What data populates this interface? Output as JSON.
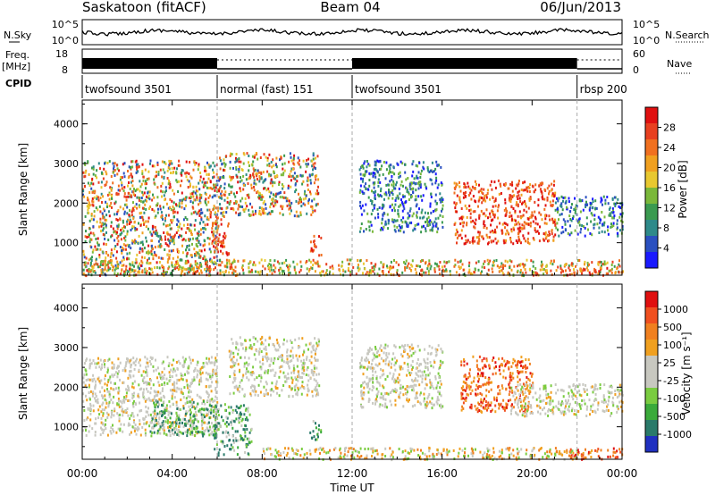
{
  "header": {
    "site": "Saskatoon (fitACF)",
    "beam": "Beam 04",
    "date": "06/Jun/2013"
  },
  "status_panels": {
    "nsky_label": "N.Sky",
    "nsky_ticks": [
      "10^5",
      "10^0"
    ],
    "nsearch_label": "N.Search",
    "nsearch_ticks": [
      "10^5",
      "10^0"
    ],
    "freq_label": "Freq.",
    "freq_unit": "[MHz]",
    "freq_ticks": [
      "18",
      "8"
    ],
    "nave_label": "Nave",
    "nave_ticks": [
      "60",
      "0"
    ],
    "cpid_label": "CPID"
  },
  "cpid_segments": [
    {
      "start": "00:00",
      "end": "06:00",
      "label": "twofsound 3501",
      "freq_style": "solid"
    },
    {
      "start": "06:00",
      "end": "12:00",
      "label": "normal (fast) 151",
      "freq_style": "dotted"
    },
    {
      "start": "12:00",
      "end": "22:00",
      "label": "twofsound 3501",
      "freq_style": "solid"
    },
    {
      "start": "22:00",
      "end": "24:00",
      "label": "rbsp 200",
      "freq_style": "dotted"
    }
  ],
  "x_axis": {
    "label": "Time UT",
    "ticks": [
      "00:00",
      "04:00",
      "08:00",
      "12:00",
      "16:00",
      "20:00",
      "00:00"
    ],
    "range_hours": [
      0,
      24
    ]
  },
  "chart_data": [
    {
      "type": "heatmap",
      "parameter": "power",
      "ylabel": "Slant Range [km]",
      "yticks": [
        "1000",
        "2000",
        "3000",
        "4000"
      ],
      "ylim": [
        180,
        4600
      ],
      "xlim_hours": [
        0,
        24
      ],
      "colorbar": {
        "label": "Power [dB]",
        "ticks": [
          "4",
          "8",
          "12",
          "16",
          "20",
          "24",
          "28"
        ],
        "range": [
          0,
          32
        ],
        "colors": [
          "#1a1aff",
          "#2a50c0",
          "#2e8a8a",
          "#3a9a50",
          "#7ab83a",
          "#e8c830",
          "#f0a020",
          "#f07020",
          "#e84020",
          "#e01010"
        ]
      },
      "scatter_regions": [
        {
          "hours": [
            0,
            6
          ],
          "range_km": [
            200,
            3100
          ],
          "level": "mixed"
        },
        {
          "hours": [
            6,
            10.5
          ],
          "range_km": [
            1700,
            3300
          ],
          "level": "mixed"
        },
        {
          "hours": [
            5.7,
            6.5
          ],
          "range_km": [
            700,
            1700
          ],
          "level": "high"
        },
        {
          "hours": [
            10.1,
            10.6
          ],
          "range_km": [
            700,
            1200
          ],
          "level": "high"
        },
        {
          "hours": [
            12.3,
            16
          ],
          "range_km": [
            1300,
            3100
          ],
          "level": "low"
        },
        {
          "hours": [
            16.5,
            21
          ],
          "range_km": [
            1000,
            2600
          ],
          "level": "high"
        },
        {
          "hours": [
            0,
            24
          ],
          "range_km": [
            200,
            600
          ],
          "level": "ground"
        },
        {
          "hours": [
            21.5,
            24
          ],
          "range_km": [
            200,
            400
          ],
          "level": "high"
        },
        {
          "hours": [
            21,
            24
          ],
          "range_km": [
            1200,
            2200
          ],
          "level": "low"
        }
      ]
    },
    {
      "type": "heatmap",
      "parameter": "velocity",
      "ylabel": "Slant Range [km]",
      "yticks": [
        "1000",
        "2000",
        "3000",
        "4000"
      ],
      "ylim": [
        180,
        4600
      ],
      "xlim_hours": [
        0,
        24
      ],
      "colorbar": {
        "label": "Velocity [m s⁻¹]",
        "ticks": [
          "1000",
          "500",
          "100",
          "25",
          "-25",
          "-100",
          "-500",
          "-1000"
        ],
        "colors": [
          "#2030c0",
          "#2a7a6a",
          "#3aaa3a",
          "#7acc40",
          "#c8c8c0",
          "#c8c8c0",
          "#f0a020",
          "#f08020",
          "#f05020",
          "#e01010"
        ]
      },
      "scatter_regions": [
        {
          "hours": [
            0,
            6
          ],
          "range_km": [
            800,
            2800
          ],
          "level": "ground"
        },
        {
          "hours": [
            3,
            6
          ],
          "range_km": [
            800,
            1700
          ],
          "level": "toward"
        },
        {
          "hours": [
            6.5,
            10.5
          ],
          "range_km": [
            1800,
            3300
          ],
          "level": "ground"
        },
        {
          "hours": [
            5.8,
            7.5
          ],
          "range_km": [
            300,
            1600
          ],
          "level": "toward"
        },
        {
          "hours": [
            10.1,
            10.6
          ],
          "range_km": [
            700,
            1200
          ],
          "level": "toward"
        },
        {
          "hours": [
            12.3,
            16
          ],
          "range_km": [
            1500,
            3100
          ],
          "level": "ground"
        },
        {
          "hours": [
            16.8,
            20
          ],
          "range_km": [
            1400,
            2800
          ],
          "level": "away"
        },
        {
          "hours": [
            19,
            24
          ],
          "range_km": [
            1300,
            2100
          ],
          "level": "ground"
        },
        {
          "hours": [
            8,
            22
          ],
          "range_km": [
            200,
            500
          ],
          "level": "away_weak"
        },
        {
          "hours": [
            21.5,
            24
          ],
          "range_km": [
            200,
            500
          ],
          "level": "away"
        }
      ]
    }
  ]
}
